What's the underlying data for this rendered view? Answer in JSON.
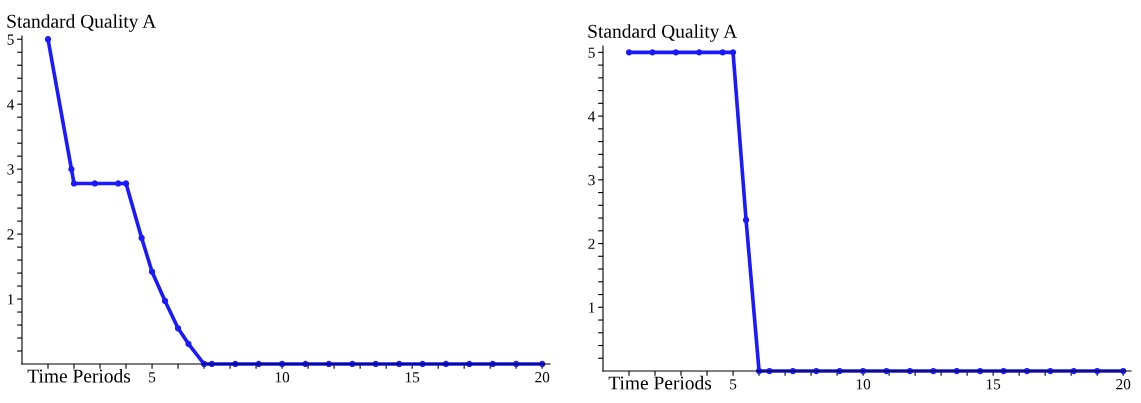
{
  "chart_data": [
    {
      "type": "line",
      "title": "Standard Quality A",
      "xlabel": "Time Periods",
      "marker": "circle",
      "line_style": "solid",
      "grid": false,
      "legend": false,
      "x": [
        1,
        1.9,
        2,
        2.8,
        3.7,
        4,
        4.6,
        5,
        5.5,
        6,
        6.4,
        7,
        7.3,
        8.2,
        9.1,
        10,
        10.9,
        11.8,
        12.7,
        13.6,
        14.5,
        15.4,
        16.3,
        17.2,
        18.1,
        19,
        20
      ],
      "series": [
        {
          "color": "#1a1aff",
          "values": [
            5,
            3,
            2.78,
            2.78,
            2.78,
            2.78,
            1.94,
            1.42,
            0.97,
            0.55,
            0.31,
            0,
            0,
            0,
            0,
            0,
            0,
            0,
            0,
            0,
            0,
            0,
            0,
            0,
            0,
            0,
            0
          ]
        }
      ],
      "xlim": [
        0,
        20.3
      ],
      "ylim": [
        0,
        5.05
      ],
      "xticks": [
        {
          "value": 1,
          "label": null
        },
        {
          "value": 2,
          "label": null
        },
        {
          "value": 3,
          "label": null
        },
        {
          "value": 4,
          "label": null
        },
        5,
        {
          "value": 6,
          "label": null
        },
        {
          "value": 7,
          "label": null
        },
        {
          "value": 8,
          "label": null
        },
        {
          "value": 9,
          "label": null
        },
        10,
        {
          "value": 11,
          "label": null
        },
        {
          "value": 12,
          "label": null
        },
        {
          "value": 13,
          "label": null
        },
        {
          "value": 14,
          "label": null
        },
        15,
        {
          "value": 16,
          "label": null
        },
        {
          "value": 17,
          "label": null
        },
        {
          "value": 18,
          "label": null
        },
        {
          "value": 19,
          "label": null
        },
        20
      ],
      "yticks": [
        {
          "value": 0.2,
          "label": null
        },
        {
          "value": 0.4,
          "label": null
        },
        {
          "value": 0.6,
          "label": null
        },
        {
          "value": 0.8,
          "label": null
        },
        1,
        {
          "value": 1.2,
          "label": null
        },
        {
          "value": 1.4,
          "label": null
        },
        {
          "value": 1.6,
          "label": null
        },
        {
          "value": 1.8,
          "label": null
        },
        2,
        {
          "value": 2.2,
          "label": null
        },
        {
          "value": 2.4,
          "label": null
        },
        {
          "value": 2.6,
          "label": null
        },
        {
          "value": 2.8,
          "label": null
        },
        3,
        {
          "value": 3.2,
          "label": null
        },
        {
          "value": 3.4,
          "label": null
        },
        {
          "value": 3.6,
          "label": null
        },
        {
          "value": 3.8,
          "label": null
        },
        4,
        {
          "value": 4.2,
          "label": null
        },
        {
          "value": 4.4,
          "label": null
        },
        {
          "value": 4.6,
          "label": null
        },
        {
          "value": 4.8,
          "label": null
        },
        5
      ]
    },
    {
      "type": "line",
      "title": "Standard Quality A",
      "xlabel": "Time Periods",
      "marker": "circle",
      "line_style": "solid",
      "grid": false,
      "legend": false,
      "x": [
        1,
        1.9,
        2.8,
        3.7,
        4.6,
        5,
        5.5,
        6,
        6.4,
        7.3,
        8.2,
        9.1,
        10,
        10.9,
        11.8,
        12.7,
        13.6,
        14.5,
        15.4,
        16.3,
        17.2,
        18.1,
        19,
        20
      ],
      "series": [
        {
          "color": "#1a1aff",
          "values": [
            5,
            5,
            5,
            5,
            5,
            5,
            2.37,
            0,
            0,
            0,
            0,
            0,
            0,
            0,
            0,
            0,
            0,
            0,
            0,
            0,
            0,
            0,
            0,
            0
          ]
        }
      ],
      "xlim": [
        0,
        20.3
      ],
      "ylim": [
        0,
        5.1
      ],
      "xticks": [
        {
          "value": 1,
          "label": null
        },
        {
          "value": 2,
          "label": null
        },
        {
          "value": 3,
          "label": null
        },
        {
          "value": 4,
          "label": null
        },
        5,
        {
          "value": 6,
          "label": null
        },
        {
          "value": 7,
          "label": null
        },
        {
          "value": 8,
          "label": null
        },
        {
          "value": 9,
          "label": null
        },
        10,
        {
          "value": 11,
          "label": null
        },
        {
          "value": 12,
          "label": null
        },
        {
          "value": 13,
          "label": null
        },
        {
          "value": 14,
          "label": null
        },
        15,
        {
          "value": 16,
          "label": null
        },
        {
          "value": 17,
          "label": null
        },
        {
          "value": 18,
          "label": null
        },
        {
          "value": 19,
          "label": null
        },
        20
      ],
      "yticks": [
        {
          "value": 0.2,
          "label": null
        },
        {
          "value": 0.4,
          "label": null
        },
        {
          "value": 0.6,
          "label": null
        },
        {
          "value": 0.8,
          "label": null
        },
        1,
        {
          "value": 1.2,
          "label": null
        },
        {
          "value": 1.4,
          "label": null
        },
        {
          "value": 1.6,
          "label": null
        },
        {
          "value": 1.8,
          "label": null
        },
        2,
        {
          "value": 2.2,
          "label": null
        },
        {
          "value": 2.4,
          "label": null
        },
        {
          "value": 2.6,
          "label": null
        },
        {
          "value": 2.8,
          "label": null
        },
        3,
        {
          "value": 3.2,
          "label": null
        },
        {
          "value": 3.4,
          "label": null
        },
        {
          "value": 3.6,
          "label": null
        },
        {
          "value": 3.8,
          "label": null
        },
        4,
        {
          "value": 4.2,
          "label": null
        },
        {
          "value": 4.4,
          "label": null
        },
        {
          "value": 4.6,
          "label": null
        },
        {
          "value": 4.8,
          "label": null
        },
        5
      ]
    }
  ]
}
